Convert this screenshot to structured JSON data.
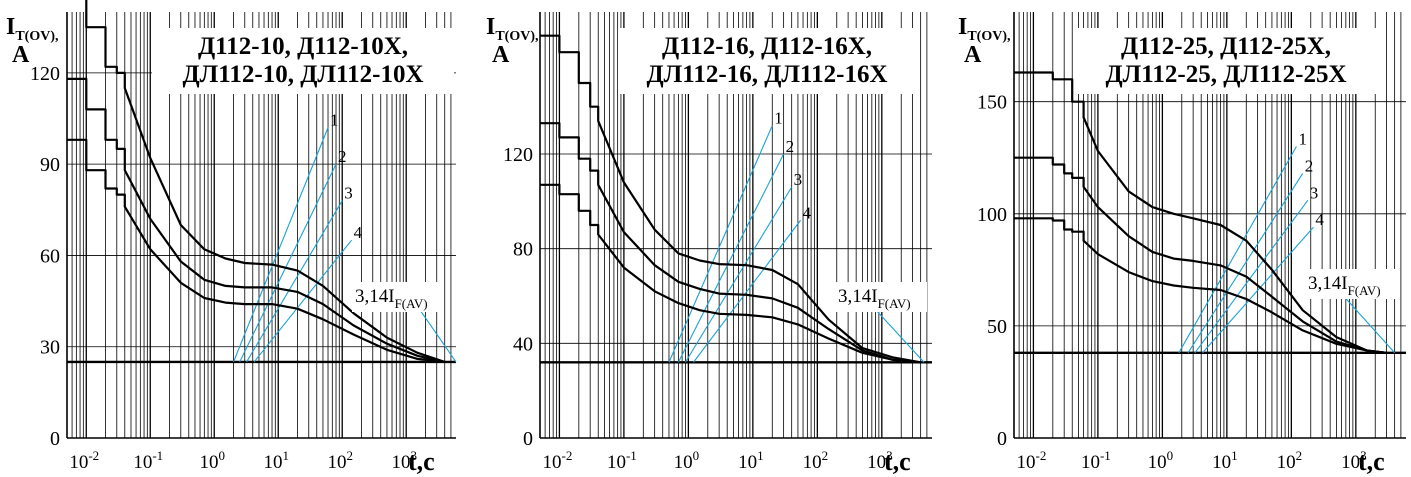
{
  "chart_data": [
    {
      "type": "line",
      "title_lines": [
        "Д112-10, Д112-10Х,",
        "ДЛ112-10, ДЛ112-10Х"
      ],
      "ylabel": {
        "main": "I",
        "sub": "T(OV)",
        "suffix": ",",
        "unit": "A"
      },
      "xlabel": "t,c",
      "xscale": "log",
      "xlim": [
        0.005,
        6000
      ],
      "ylim": [
        0,
        140
      ],
      "yticks": [
        "0",
        "30",
        "60",
        "90",
        "120"
      ],
      "ytick_values": [
        0,
        30,
        60,
        90,
        120
      ],
      "xticks": [
        {
          "base": "10",
          "exp": "-2",
          "value": 0.01
        },
        {
          "base": "10",
          "exp": "-1",
          "value": 0.1
        },
        {
          "base": "10",
          "exp": "0",
          "value": 1
        },
        {
          "base": "10",
          "exp": "1",
          "value": 10
        },
        {
          "base": "10",
          "exp": "2",
          "value": 100
        },
        {
          "base": "10",
          "exp": "3",
          "value": 1000
        }
      ],
      "grid": true,
      "annotation": {
        "text": "3,14I",
        "sub": "F(AV)"
      },
      "guide_labels": [
        "1",
        "2",
        "3",
        "4"
      ],
      "baseline": 25,
      "series": [
        {
          "x": [
            0.005,
            0.01,
            0.01,
            0.02,
            0.02,
            0.03,
            0.03,
            0.04,
            0.04,
            0.1,
            0.3,
            0.7,
            1.5,
            3,
            8,
            20,
            50,
            150,
            500,
            1500,
            4000
          ],
          "y": [
            150,
            150,
            135,
            135,
            122,
            122,
            120,
            120,
            115,
            92,
            70,
            62,
            59,
            57.5,
            57,
            55,
            50,
            41,
            33,
            28,
            25
          ]
        },
        {
          "x": [
            0.005,
            0.01,
            0.01,
            0.02,
            0.02,
            0.03,
            0.03,
            0.04,
            0.04,
            0.1,
            0.3,
            0.7,
            1.5,
            3,
            8,
            20,
            50,
            150,
            500,
            1500,
            4000
          ],
          "y": [
            118,
            118,
            108,
            108,
            98,
            98,
            95,
            95,
            88,
            72,
            58,
            52,
            50,
            49.5,
            49.5,
            48,
            44,
            37,
            31,
            27,
            25
          ]
        },
        {
          "x": [
            0.005,
            0.01,
            0.01,
            0.02,
            0.02,
            0.03,
            0.03,
            0.04,
            0.04,
            0.1,
            0.3,
            0.7,
            1.5,
            3,
            8,
            20,
            50,
            150,
            500,
            1500,
            4000
          ],
          "y": [
            98,
            98,
            88,
            88,
            82,
            82,
            80,
            80,
            76,
            62,
            51,
            46,
            44.5,
            44,
            44,
            42.5,
            39,
            34,
            29,
            26,
            25
          ]
        }
      ],
      "guides": [
        {
          "x": [
            2,
            60
          ],
          "y": [
            25,
            102
          ]
        },
        {
          "x": [
            2.5,
            80
          ],
          "y": [
            25,
            90
          ]
        },
        {
          "x": [
            3.2,
            100
          ],
          "y": [
            25,
            78
          ]
        },
        {
          "x": [
            4.2,
            140
          ],
          "y": [
            25,
            65
          ]
        },
        {
          "x": [
            900,
            6000
          ],
          "y": [
            50,
            25
          ]
        }
      ]
    },
    {
      "type": "line",
      "title_lines": [
        "Д112-16, Д112-16Х,",
        "ДЛ112-16, ДЛ112-16Х"
      ],
      "ylabel": {
        "main": "I",
        "sub": "T(OV)",
        "suffix": ",",
        "unit": "A"
      },
      "xlabel": "t,c",
      "xscale": "log",
      "xlim": [
        0.005,
        6000
      ],
      "ylim": [
        0,
        180
      ],
      "yticks": [
        "0",
        "40",
        "80",
        "120"
      ],
      "ytick_values": [
        0,
        40,
        80,
        120
      ],
      "xticks": [
        {
          "base": "10",
          "exp": "-2",
          "value": 0.01
        },
        {
          "base": "10",
          "exp": "-1",
          "value": 0.1
        },
        {
          "base": "10",
          "exp": "0",
          "value": 1
        },
        {
          "base": "10",
          "exp": "1",
          "value": 10
        },
        {
          "base": "10",
          "exp": "2",
          "value": 100
        },
        {
          "base": "10",
          "exp": "3",
          "value": 1000
        }
      ],
      "grid": true,
      "annotation": {
        "text": "3,14I",
        "sub": "F(AV)"
      },
      "guide_labels": [
        "1",
        "2",
        "3",
        "4"
      ],
      "baseline": 32,
      "series": [
        {
          "x": [
            0.005,
            0.01,
            0.01,
            0.02,
            0.02,
            0.03,
            0.03,
            0.04,
            0.04,
            0.1,
            0.3,
            0.7,
            1.5,
            3,
            8,
            20,
            50,
            150,
            500,
            1500,
            4000
          ],
          "y": [
            170,
            170,
            163,
            163,
            150,
            150,
            140,
            140,
            134,
            108,
            88,
            78,
            75,
            73.5,
            73,
            71,
            65,
            50,
            38,
            34,
            32
          ]
        },
        {
          "x": [
            0.005,
            0.01,
            0.01,
            0.02,
            0.02,
            0.03,
            0.03,
            0.04,
            0.04,
            0.1,
            0.3,
            0.7,
            1.5,
            3,
            8,
            20,
            50,
            150,
            500,
            1500,
            4000
          ],
          "y": [
            133,
            133,
            127,
            127,
            118,
            118,
            113,
            113,
            107,
            87,
            73,
            66,
            63,
            61,
            60.5,
            59,
            55,
            46,
            37,
            33,
            32
          ]
        },
        {
          "x": [
            0.005,
            0.01,
            0.01,
            0.02,
            0.02,
            0.03,
            0.03,
            0.04,
            0.04,
            0.1,
            0.3,
            0.7,
            1.5,
            3,
            8,
            20,
            50,
            150,
            500,
            1500,
            4000
          ],
          "y": [
            107,
            107,
            103,
            103,
            96,
            96,
            90,
            90,
            86,
            72,
            62,
            57,
            54,
            52.5,
            52,
            51,
            48,
            42,
            36,
            33,
            32
          ]
        }
      ],
      "guides": [
        {
          "x": [
            0.5,
            20
          ],
          "y": [
            32,
            132
          ]
        },
        {
          "x": [
            0.7,
            30
          ],
          "y": [
            32,
            120
          ]
        },
        {
          "x": [
            0.9,
            40
          ],
          "y": [
            32,
            106
          ]
        },
        {
          "x": [
            1.2,
            55
          ],
          "y": [
            32,
            92
          ]
        },
        {
          "x": [
            700,
            4500
          ],
          "y": [
            56,
            32
          ]
        }
      ]
    },
    {
      "type": "line",
      "title_lines": [
        "Д112-25, Д112-25Х,",
        "ДЛ112-25, ДЛ112-25Х"
      ],
      "ylabel": {
        "main": "I",
        "sub": "T(OV)",
        "suffix": ",",
        "unit": "A"
      },
      "xlabel": "t,c",
      "xscale": "log",
      "xlim": [
        0.005,
        6000
      ],
      "ylim": [
        0,
        190
      ],
      "yticks": [
        "0",
        "50",
        "100",
        "150"
      ],
      "ytick_values": [
        0,
        50,
        100,
        150
      ],
      "xticks": [
        {
          "base": "10",
          "exp": "-2",
          "value": 0.01
        },
        {
          "base": "10",
          "exp": "-1",
          "value": 0.1
        },
        {
          "base": "10",
          "exp": "0",
          "value": 1
        },
        {
          "base": "10",
          "exp": "1",
          "value": 10
        },
        {
          "base": "10",
          "exp": "2",
          "value": 100
        },
        {
          "base": "10",
          "exp": "3",
          "value": 1000
        }
      ],
      "grid": true,
      "annotation": {
        "text": "3,14I",
        "sub": "F(AV)"
      },
      "guide_labels": [
        "1",
        "2",
        "3",
        "4"
      ],
      "baseline": 38,
      "series": [
        {
          "x": [
            0.005,
            0.01,
            0.01,
            0.02,
            0.02,
            0.03,
            0.03,
            0.04,
            0.04,
            0.06,
            0.06,
            0.1,
            0.3,
            0.7,
            1.5,
            3,
            8,
            20,
            50,
            150,
            500,
            1500,
            3000
          ],
          "y": [
            163,
            163,
            163,
            163,
            160,
            160,
            160,
            160,
            150,
            150,
            143,
            128,
            110,
            103,
            100,
            98,
            95,
            88,
            75,
            57,
            45,
            39,
            38
          ]
        },
        {
          "x": [
            0.005,
            0.01,
            0.01,
            0.02,
            0.02,
            0.03,
            0.03,
            0.04,
            0.04,
            0.06,
            0.06,
            0.1,
            0.3,
            0.7,
            1.5,
            3,
            8,
            20,
            50,
            150,
            500,
            1500,
            3000
          ],
          "y": [
            125,
            125,
            125,
            125,
            122,
            122,
            118,
            118,
            116,
            116,
            112,
            103,
            90,
            83,
            80,
            79,
            77,
            72,
            63,
            52,
            43,
            39,
            38
          ]
        },
        {
          "x": [
            0.005,
            0.01,
            0.01,
            0.02,
            0.02,
            0.03,
            0.03,
            0.04,
            0.04,
            0.06,
            0.06,
            0.1,
            0.3,
            0.7,
            1.5,
            3,
            8,
            20,
            50,
            150,
            500,
            1500,
            3000
          ],
          "y": [
            98,
            98,
            98,
            98,
            97,
            97,
            93,
            93,
            92,
            92,
            88,
            82,
            74,
            70,
            68,
            67,
            66,
            62,
            56,
            48,
            42,
            39,
            38
          ]
        }
      ],
      "guides": [
        {
          "x": [
            1.8,
            120
          ],
          "y": [
            38,
            130
          ]
        },
        {
          "x": [
            2.5,
            150
          ],
          "y": [
            38,
            118
          ]
        },
        {
          "x": [
            3.2,
            180
          ],
          "y": [
            38,
            106
          ]
        },
        {
          "x": [
            4.2,
            220
          ],
          "y": [
            38,
            94
          ]
        },
        {
          "x": [
            300,
            4000
          ],
          "y": [
            74,
            38
          ]
        }
      ]
    }
  ],
  "colors": {
    "axis": "#000000",
    "grid": "#000000",
    "series": "#000000",
    "guide": "#1aa3d6",
    "background": "#ffffff"
  }
}
